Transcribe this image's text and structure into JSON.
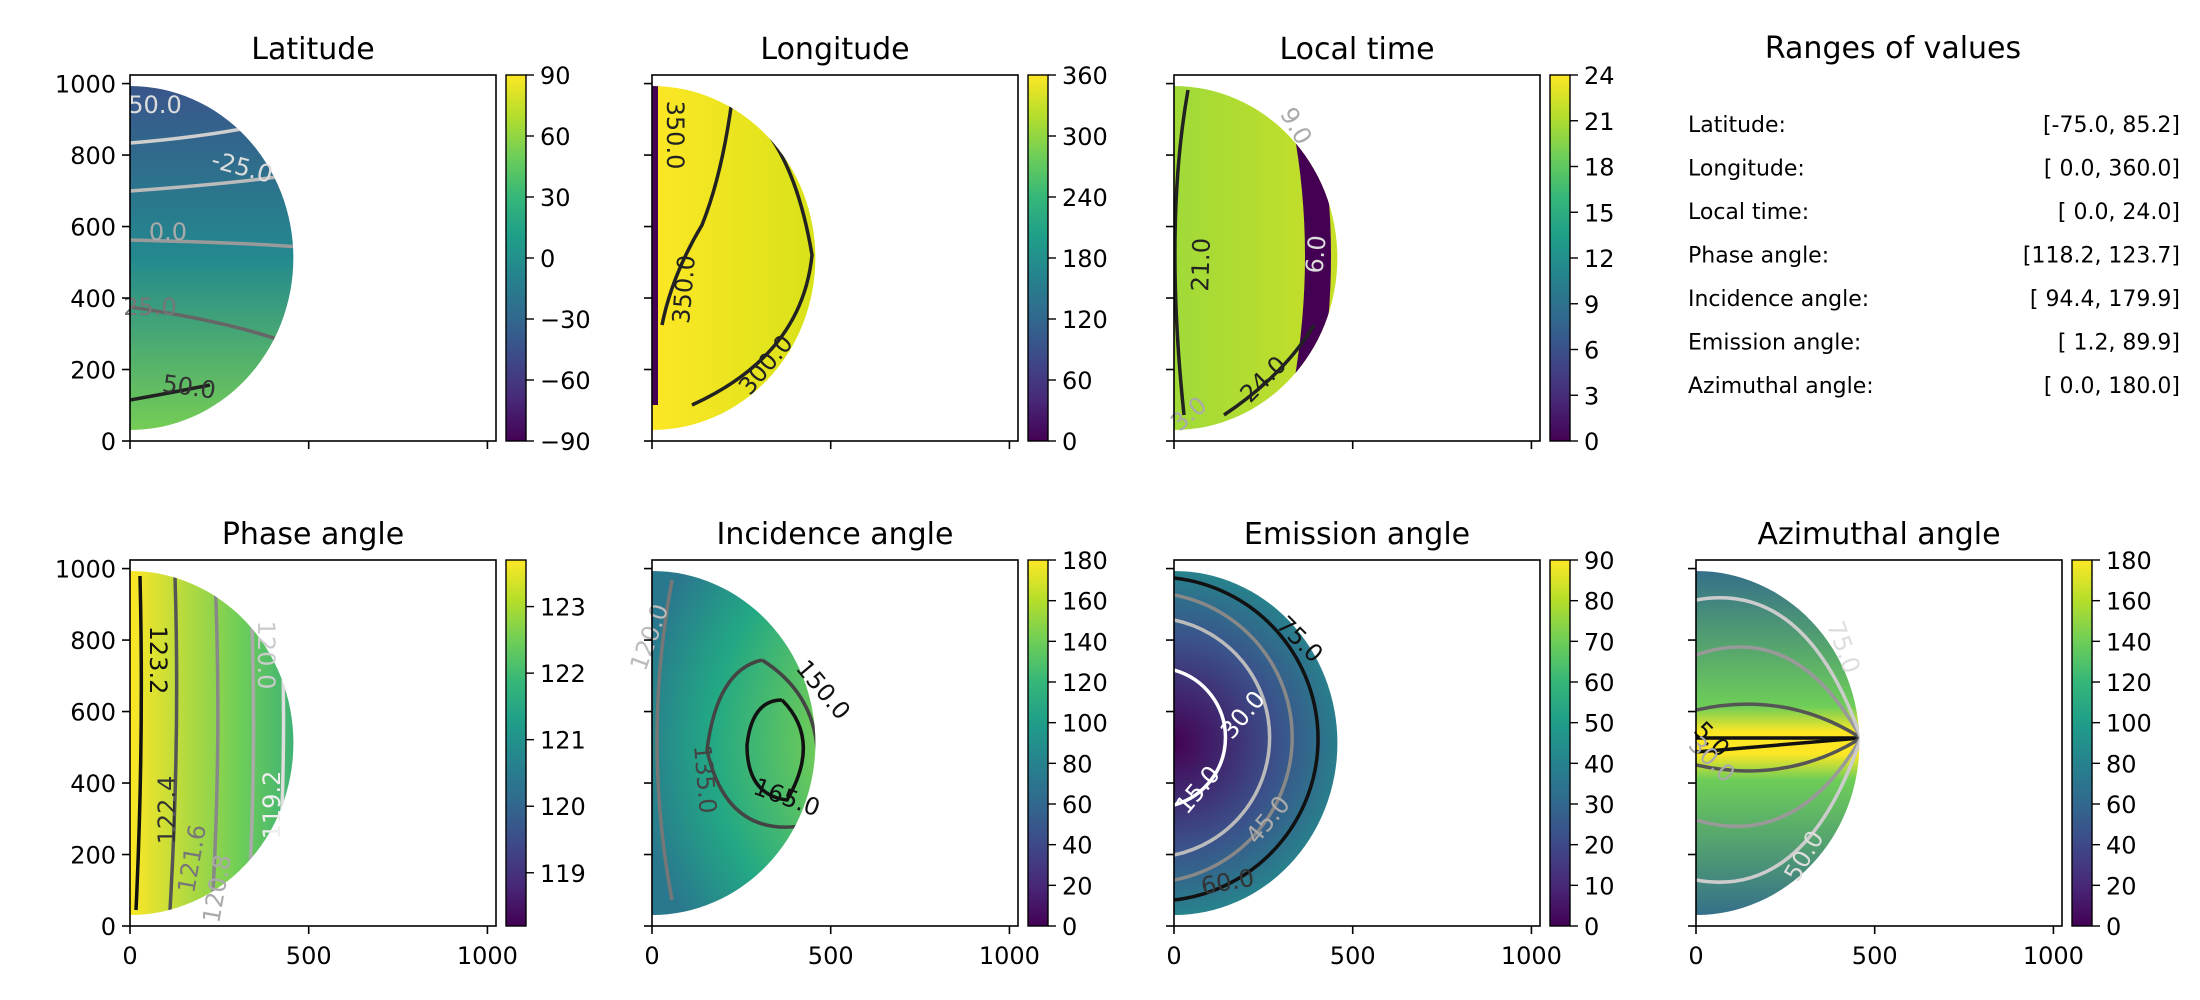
{
  "chart_data": [
    {
      "type": "heatmap",
      "title": "Latitude",
      "x_ticks": [
        "0",
        "500",
        "1000"
      ],
      "y_ticks": [
        "0",
        "200",
        "400",
        "600",
        "800",
        "1000"
      ],
      "xlim": [
        0,
        1024
      ],
      "ylim": [
        0,
        1024
      ],
      "colormap": "viridis",
      "colorbar": {
        "range": [
          -90,
          90
        ],
        "ticks": [
          "90",
          "60",
          "30",
          "0",
          "−30",
          "−60",
          "−90"
        ]
      },
      "contour_labels": [
        "50.0",
        "-25.0",
        "0.0",
        "25.0",
        "50.0"
      ],
      "value_range": [
        -75.0,
        85.2
      ]
    },
    {
      "type": "heatmap",
      "title": "Longitude",
      "x_ticks": [
        "0",
        "500",
        "1000"
      ],
      "xlim": [
        0,
        1024
      ],
      "ylim": [
        0,
        1024
      ],
      "colormap": "viridis",
      "colorbar": {
        "range": [
          0,
          360
        ],
        "ticks": [
          "360",
          "300",
          "240",
          "180",
          "120",
          "60",
          "0"
        ]
      },
      "contour_labels": [
        "350.0",
        "350.0",
        "300.0"
      ],
      "value_range": [
        0.0,
        360.0
      ]
    },
    {
      "type": "heatmap",
      "title": "Local time",
      "x_ticks": [
        "0",
        "500",
        "1000"
      ],
      "xlim": [
        0,
        1024
      ],
      "ylim": [
        0,
        1024
      ],
      "colormap": "viridis",
      "colorbar": {
        "range": [
          0,
          24
        ],
        "ticks": [
          "24",
          "21",
          "18",
          "15",
          "12",
          "9",
          "6",
          "3",
          "0"
        ]
      },
      "contour_labels": [
        "21.0",
        "9.0",
        "6.0",
        "24.0",
        "3.0"
      ],
      "value_range": [
        0.0,
        24.0
      ]
    },
    {
      "type": "heatmap",
      "title": "Phase angle",
      "x_ticks": [
        "0",
        "500",
        "1000"
      ],
      "y_ticks": [
        "0",
        "200",
        "400",
        "600",
        "800",
        "1000"
      ],
      "xlim": [
        0,
        1024
      ],
      "ylim": [
        0,
        1024
      ],
      "colormap": "viridis",
      "colorbar": {
        "range": [
          118.2,
          123.7
        ],
        "ticks": [
          "123",
          "122",
          "121",
          "120",
          "119"
        ]
      },
      "contour_labels": [
        "123.2",
        "122.4",
        "121.6",
        "120.8",
        "120.0",
        "119.2"
      ],
      "value_range": [
        118.2,
        123.7
      ]
    },
    {
      "type": "heatmap",
      "title": "Incidence angle",
      "x_ticks": [
        "0",
        "500",
        "1000"
      ],
      "xlim": [
        0,
        1024
      ],
      "ylim": [
        0,
        1024
      ],
      "colormap": "viridis",
      "colorbar": {
        "range": [
          0,
          180
        ],
        "ticks": [
          "180",
          "160",
          "140",
          "120",
          "100",
          "80",
          "60",
          "40",
          "20",
          "0"
        ]
      },
      "contour_labels": [
        "150.0",
        "165.0",
        "135.0",
        "120.0"
      ],
      "value_range": [
        94.4,
        179.9
      ]
    },
    {
      "type": "heatmap",
      "title": "Emission angle",
      "x_ticks": [
        "0",
        "500",
        "1000"
      ],
      "xlim": [
        0,
        1024
      ],
      "ylim": [
        0,
        1024
      ],
      "colormap": "viridis",
      "colorbar": {
        "range": [
          0,
          90
        ],
        "ticks": [
          "90",
          "80",
          "70",
          "60",
          "50",
          "40",
          "30",
          "20",
          "10",
          "0"
        ]
      },
      "contour_labels": [
        "75.0",
        "30.0",
        "15.0",
        "45.0",
        "60.0"
      ],
      "value_range": [
        1.2,
        89.9
      ]
    },
    {
      "type": "heatmap",
      "title": "Azimuthal angle",
      "x_ticks": [
        "0",
        "500",
        "1000"
      ],
      "xlim": [
        0,
        1024
      ],
      "ylim": [
        0,
        1024
      ],
      "colormap": "viridis",
      "colorbar": {
        "range": [
          0,
          180
        ],
        "ticks": [
          "180",
          "160",
          "140",
          "120",
          "100",
          "80",
          "60",
          "40",
          "20",
          "0"
        ]
      },
      "contour_labels": [
        "75.0",
        "5.0",
        "30.0",
        "50.0"
      ],
      "value_range": [
        0.0,
        180.0
      ]
    },
    {
      "type": "table",
      "title": "Ranges of values",
      "rows": [
        {
          "label": "Latitude:",
          "value": "[-75.0,  85.2]"
        },
        {
          "label": "Longitude:",
          "value": "[  0.0, 360.0]"
        },
        {
          "label": "Local time:",
          "value": "[  0.0,  24.0]"
        },
        {
          "label": "Phase angle:",
          "value": "[118.2, 123.7]"
        },
        {
          "label": "Incidence angle:",
          "value": "[ 94.4, 179.9]"
        },
        {
          "label": "Emission angle:",
          "value": "[  1.2,  89.9]"
        },
        {
          "label": "Azimuthal angle:",
          "value": "[  0.0, 180.0]"
        }
      ]
    }
  ]
}
